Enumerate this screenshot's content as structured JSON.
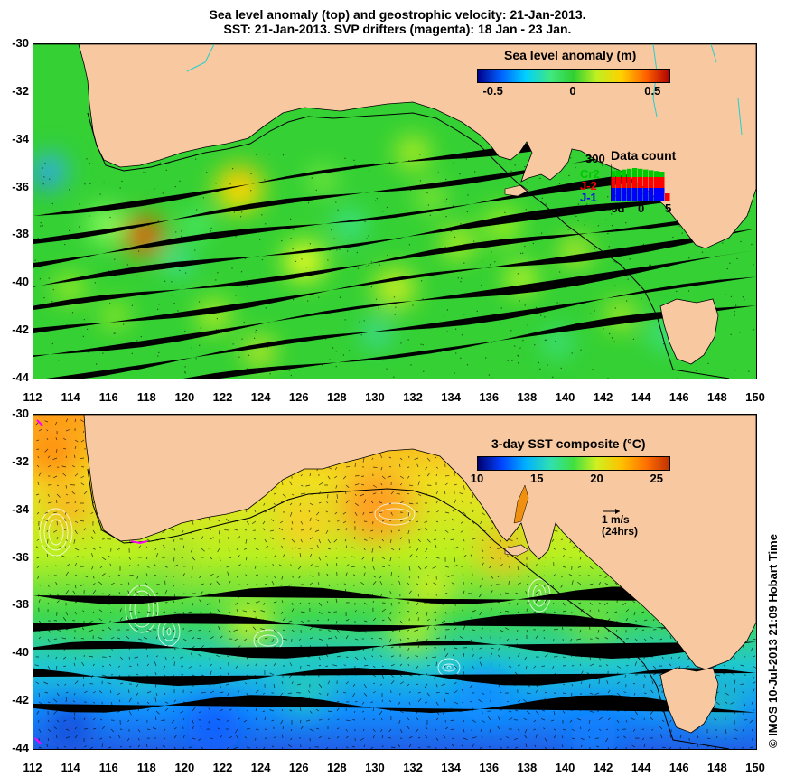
{
  "title": {
    "line1": "Sea level anomaly (top) and geostrophic velocity: 21-Jan-2013.",
    "line2": "SST: 21-Jan-2013. SVP drifters (magenta): 18 Jan - 23 Jan."
  },
  "axes": {
    "lat_ticks": [
      "-30",
      "-32",
      "-34",
      "-36",
      "-38",
      "-40",
      "-42",
      "-44"
    ],
    "lon_ticks": [
      "112",
      "114",
      "116",
      "118",
      "120",
      "122",
      "124",
      "126",
      "128",
      "130",
      "132",
      "134",
      "136",
      "138",
      "140",
      "142",
      "144",
      "146",
      "148",
      "150"
    ]
  },
  "top_panel": {
    "colorbar_title": "Sea level anomaly (m)",
    "colorbar_ticks": [
      "-0.5",
      "0",
      "0.5"
    ],
    "colorbar_range": [
      -0.6,
      0.6
    ],
    "colormap": [
      "#00008c",
      "#0060ff",
      "#00d0ff",
      "#40e880",
      "#30d030",
      "#c0f020",
      "#ffd000",
      "#ff6000",
      "#b00000"
    ],
    "data_count": {
      "title": "Data count",
      "max_label": "300",
      "missions": [
        {
          "name": "Cr2",
          "color": "#00c800"
        },
        {
          "name": "J-2",
          "color": "#ff0000"
        },
        {
          "name": "J-1",
          "color": "#0000ff"
        }
      ],
      "x_ticks": [
        "-5d",
        "0",
        "5"
      ]
    }
  },
  "bottom_panel": {
    "colorbar_title": "3-day SST composite (°C)",
    "colorbar_ticks": [
      "10",
      "15",
      "20",
      "25"
    ],
    "colorbar_range": [
      10,
      26
    ],
    "colormap": [
      "#00006e",
      "#0040ff",
      "#00b0ff",
      "#30e0b0",
      "#40e040",
      "#d0f020",
      "#ffc000",
      "#ff7000",
      "#c03000"
    ],
    "velocity_scale": {
      "line1": "1 m/s",
      "line2": "(24hrs)"
    }
  },
  "colors": {
    "land": "#f8c8a0",
    "shelf_contour": "#000000",
    "rivers": "#20d0d0",
    "drifters": "#ff00ff"
  },
  "credit": "© IMOS 10-Jul-2013 21:09 Hobart Time"
}
